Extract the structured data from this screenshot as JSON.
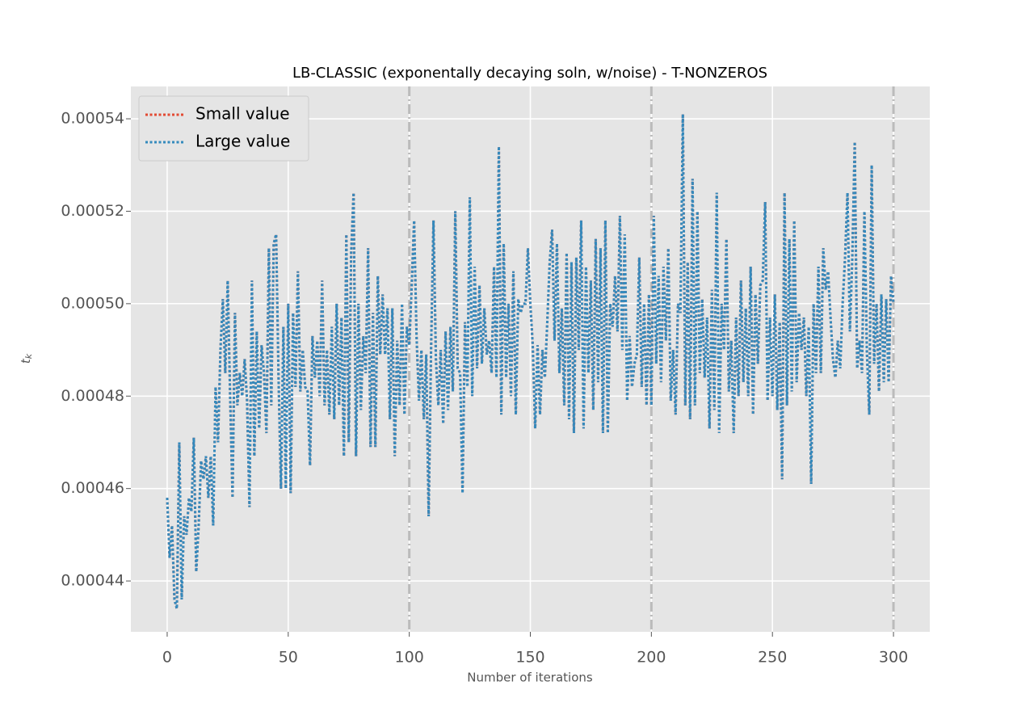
{
  "chart_data": {
    "type": "line",
    "title": "LB-CLASSIC (exponentally decaying soln, w/noise) - T-NONZEROS",
    "xlabel": "Number of iterations",
    "ylabel": {
      "base": "t",
      "sub": "k"
    },
    "xlim": [
      -15,
      315
    ],
    "xticks": [
      0,
      50,
      100,
      150,
      200,
      250,
      300
    ],
    "ylim": [
      0.000429,
      0.000547
    ],
    "yticks": [
      0.00044,
      0.00046,
      0.00048,
      {
        "value": 0.0005,
        "label": "0.00050"
      },
      0.00052,
      0.00054
    ],
    "grid": true,
    "legend": "upper left",
    "vlines": [
      100,
      200,
      300
    ],
    "vline_color": "#bbbbbb",
    "x": [
      0,
      1,
      2,
      3,
      4,
      5,
      6,
      7,
      8,
      9,
      10,
      11,
      12,
      13,
      14,
      15,
      16,
      17,
      18,
      19,
      20,
      21,
      22,
      23,
      24,
      25,
      26,
      27,
      28,
      29,
      30,
      31,
      32,
      33,
      34,
      35,
      36,
      37,
      38,
      39,
      40,
      41,
      42,
      43,
      44,
      45,
      46,
      47,
      48,
      49,
      50,
      51,
      52,
      53,
      54,
      55,
      56,
      57,
      58,
      59,
      60,
      61,
      62,
      63,
      64,
      65,
      66,
      67,
      68,
      69,
      70,
      71,
      72,
      73,
      74,
      75,
      76,
      77,
      78,
      79,
      80,
      81,
      82,
      83,
      84,
      85,
      86,
      87,
      88,
      89,
      90,
      91,
      92,
      93,
      94,
      95,
      96,
      97,
      98,
      99,
      100,
      101,
      102,
      103,
      104,
      105,
      106,
      107,
      108,
      109,
      110,
      111,
      112,
      113,
      114,
      115,
      116,
      117,
      118,
      119,
      120,
      121,
      122,
      123,
      124,
      125,
      126,
      127,
      128,
      129,
      130,
      131,
      132,
      133,
      134,
      135,
      136,
      137,
      138,
      139,
      140,
      141,
      142,
      143,
      144,
      145,
      146,
      147,
      148,
      149,
      150,
      151,
      152,
      153,
      154,
      155,
      156,
      157,
      158,
      159,
      160,
      161,
      162,
      163,
      164,
      165,
      166,
      167,
      168,
      169,
      170,
      171,
      172,
      173,
      174,
      175,
      176,
      177,
      178,
      179,
      180,
      181,
      182,
      183,
      184,
      185,
      186,
      187,
      188,
      189,
      190,
      191,
      192,
      193,
      194,
      195,
      196,
      197,
      198,
      199,
      200,
      201,
      202,
      203,
      204,
      205,
      206,
      207,
      208,
      209,
      210,
      211,
      212,
      213,
      214,
      215,
      216,
      217,
      218,
      219,
      220,
      221,
      222,
      223,
      224,
      225,
      226,
      227,
      228,
      229,
      230,
      231,
      232,
      233,
      234,
      235,
      236,
      237,
      238,
      239,
      240,
      241,
      242,
      243,
      244,
      245,
      246,
      247,
      248,
      249,
      250,
      251,
      252,
      253,
      254,
      255,
      256,
      257,
      258,
      259,
      260,
      261,
      262,
      263,
      264,
      265,
      266,
      267,
      268,
      269,
      270,
      271,
      272,
      273,
      274,
      275,
      276,
      277,
      278,
      279,
      280,
      281,
      282,
      283,
      284,
      285,
      286,
      287,
      288,
      289,
      290,
      291,
      292,
      293,
      294,
      295,
      296,
      297,
      298,
      299,
      300
    ],
    "series": [
      {
        "name": "Small value",
        "color": "#E24A33",
        "values": [
          0.000458,
          0.000445,
          0.000452,
          0.000436,
          0.000434,
          0.00047,
          0.000436,
          0.000454,
          0.00045,
          0.000458,
          0.000455,
          0.000471,
          0.000442,
          0.000452,
          0.000466,
          0.000462,
          0.000467,
          0.000458,
          0.000467,
          0.000452,
          0.000482,
          0.00047,
          0.00049,
          0.000501,
          0.000485,
          0.000505,
          0.00048,
          0.000458,
          0.000498,
          0.000478,
          0.000485,
          0.00048,
          0.000488,
          0.000479,
          0.000456,
          0.000505,
          0.000467,
          0.000494,
          0.000473,
          0.000491,
          0.000485,
          0.000472,
          0.000512,
          0.000478,
          0.000513,
          0.000515,
          0.000484,
          0.00046,
          0.000495,
          0.00046,
          0.0005,
          0.000459,
          0.000498,
          0.000482,
          0.000507,
          0.000481,
          0.00049,
          0.000482,
          0.000481,
          0.000465,
          0.000493,
          0.000484,
          0.000492,
          0.00048,
          0.000505,
          0.000478,
          0.00049,
          0.000476,
          0.000495,
          0.000475,
          0.0005,
          0.000478,
          0.000497,
          0.000467,
          0.000515,
          0.00047,
          0.000511,
          0.000524,
          0.000467,
          0.0005,
          0.000477,
          0.000493,
          0.000485,
          0.000512,
          0.000469,
          0.000498,
          0.000469,
          0.000506,
          0.000489,
          0.000502,
          0.000489,
          0.000499,
          0.000475,
          0.000499,
          0.000467,
          0.000492,
          0.000478,
          0.0005,
          0.000476,
          0.000495,
          0.000491,
          0.000504,
          0.000518,
          0.000493,
          0.000479,
          0.00049,
          0.000475,
          0.000489,
          0.000454,
          0.00049,
          0.000518,
          0.000488,
          0.000478,
          0.00049,
          0.000474,
          0.000494,
          0.000477,
          0.000495,
          0.000481,
          0.00052,
          0.000486,
          0.000485,
          0.000459,
          0.000496,
          0.000482,
          0.000523,
          0.00048,
          0.000508,
          0.000486,
          0.000504,
          0.000487,
          0.000499,
          0.000489,
          0.000492,
          0.000485,
          0.000508,
          0.000484,
          0.000534,
          0.000476,
          0.000513,
          0.000484,
          0.0005,
          0.00048,
          0.000507,
          0.000476,
          0.000501,
          0.000498,
          0.0005,
          0.0005,
          0.000512,
          0.0005,
          0.000491,
          0.000473,
          0.000491,
          0.000476,
          0.00049,
          0.000484,
          0.000496,
          0.000509,
          0.000516,
          0.000492,
          0.000513,
          0.000485,
          0.000499,
          0.000478,
          0.000511,
          0.000475,
          0.000509,
          0.000472,
          0.00051,
          0.00049,
          0.000518,
          0.000473,
          0.000508,
          0.000485,
          0.000505,
          0.000477,
          0.000514,
          0.000483,
          0.000512,
          0.000472,
          0.000518,
          0.000472,
          0.0005,
          0.000495,
          0.000506,
          0.000494,
          0.000519,
          0.00049,
          0.000515,
          0.000479,
          0.000493,
          0.000482,
          0.000487,
          0.000489,
          0.00051,
          0.000482,
          0.0005,
          0.000478,
          0.000502,
          0.000478,
          0.000519,
          0.000487,
          0.000506,
          0.000483,
          0.000508,
          0.000492,
          0.000512,
          0.000479,
          0.00049,
          0.000476,
          0.0005,
          0.000498,
          0.000541,
          0.000478,
          0.000509,
          0.000475,
          0.000527,
          0.000478,
          0.00052,
          0.000485,
          0.000501,
          0.000484,
          0.000497,
          0.000473,
          0.000503,
          0.000477,
          0.000524,
          0.000472,
          0.0005,
          0.00049,
          0.000514,
          0.000481,
          0.000492,
          0.000472,
          0.000497,
          0.00048,
          0.000505,
          0.000483,
          0.000499,
          0.00048,
          0.000508,
          0.000476,
          0.000502,
          0.000487,
          0.000504,
          0.000505,
          0.000522,
          0.000479,
          0.000497,
          0.00048,
          0.000502,
          0.000477,
          0.000496,
          0.000462,
          0.000524,
          0.000478,
          0.000514,
          0.000481,
          0.000518,
          0.000483,
          0.000498,
          0.00049,
          0.000497,
          0.00048,
          0.000495,
          0.000461,
          0.0005,
          0.000485,
          0.000508,
          0.000485,
          0.000512,
          0.000503,
          0.000507,
          0.000497,
          0.000488,
          0.000484,
          0.000492,
          0.000486,
          0.0005,
          0.00051,
          0.000524,
          0.000494,
          0.00051,
          0.000535,
          0.000486,
          0.000492,
          0.000485,
          0.00052,
          0.00049,
          0.000476,
          0.00053,
          0.000487,
          0.0005,
          0.000481,
          0.000502,
          0.000483,
          0.000501,
          0.000483,
          0.000506,
          0.0005
        ]
      },
      {
        "name": "Large value",
        "color": "#348ABD",
        "values": [
          0.000458,
          0.000445,
          0.000452,
          0.000436,
          0.000434,
          0.00047,
          0.000436,
          0.000454,
          0.00045,
          0.000458,
          0.000455,
          0.000471,
          0.000442,
          0.000452,
          0.000466,
          0.000462,
          0.000467,
          0.000458,
          0.000467,
          0.000452,
          0.000482,
          0.00047,
          0.00049,
          0.000501,
          0.000485,
          0.000505,
          0.00048,
          0.000458,
          0.000498,
          0.000478,
          0.000485,
          0.00048,
          0.000488,
          0.000479,
          0.000456,
          0.000505,
          0.000467,
          0.000494,
          0.000473,
          0.000491,
          0.000485,
          0.000472,
          0.000512,
          0.000478,
          0.000513,
          0.000515,
          0.000484,
          0.00046,
          0.000495,
          0.00046,
          0.0005,
          0.000459,
          0.000498,
          0.000482,
          0.000507,
          0.000481,
          0.00049,
          0.000482,
          0.000481,
          0.000465,
          0.000493,
          0.000484,
          0.000492,
          0.00048,
          0.000505,
          0.000478,
          0.00049,
          0.000476,
          0.000495,
          0.000475,
          0.0005,
          0.000478,
          0.000497,
          0.000467,
          0.000515,
          0.00047,
          0.000511,
          0.000524,
          0.000467,
          0.0005,
          0.000477,
          0.000493,
          0.000485,
          0.000512,
          0.000469,
          0.000498,
          0.000469,
          0.000506,
          0.000489,
          0.000502,
          0.000489,
          0.000499,
          0.000475,
          0.000499,
          0.000467,
          0.000492,
          0.000478,
          0.0005,
          0.000476,
          0.000495,
          0.000491,
          0.000504,
          0.000518,
          0.000493,
          0.000479,
          0.00049,
          0.000475,
          0.000489,
          0.000454,
          0.00049,
          0.000518,
          0.000488,
          0.000478,
          0.00049,
          0.000474,
          0.000494,
          0.000477,
          0.000495,
          0.000481,
          0.00052,
          0.000486,
          0.000485,
          0.000459,
          0.000496,
          0.000482,
          0.000523,
          0.00048,
          0.000508,
          0.000486,
          0.000504,
          0.000487,
          0.000499,
          0.000489,
          0.000492,
          0.000485,
          0.000508,
          0.000484,
          0.000534,
          0.000476,
          0.000513,
          0.000484,
          0.0005,
          0.00048,
          0.000507,
          0.000476,
          0.000501,
          0.000498,
          0.0005,
          0.0005,
          0.000512,
          0.0005,
          0.000491,
          0.000473,
          0.000491,
          0.000476,
          0.00049,
          0.000484,
          0.000496,
          0.000509,
          0.000516,
          0.000492,
          0.000513,
          0.000485,
          0.000499,
          0.000478,
          0.000511,
          0.000475,
          0.000509,
          0.000472,
          0.00051,
          0.00049,
          0.000518,
          0.000473,
          0.000508,
          0.000485,
          0.000505,
          0.000477,
          0.000514,
          0.000483,
          0.000512,
          0.000472,
          0.000518,
          0.000472,
          0.0005,
          0.000495,
          0.000506,
          0.000494,
          0.000519,
          0.00049,
          0.000515,
          0.000479,
          0.000493,
          0.000482,
          0.000487,
          0.000489,
          0.00051,
          0.000482,
          0.0005,
          0.000478,
          0.000502,
          0.000478,
          0.000519,
          0.000487,
          0.000506,
          0.000483,
          0.000508,
          0.000492,
          0.000512,
          0.000479,
          0.00049,
          0.000476,
          0.0005,
          0.000498,
          0.000541,
          0.000478,
          0.000509,
          0.000475,
          0.000527,
          0.000478,
          0.00052,
          0.000485,
          0.000501,
          0.000484,
          0.000497,
          0.000473,
          0.000503,
          0.000477,
          0.000524,
          0.000472,
          0.0005,
          0.00049,
          0.000514,
          0.000481,
          0.000492,
          0.000472,
          0.000497,
          0.00048,
          0.000505,
          0.000483,
          0.000499,
          0.00048,
          0.000508,
          0.000476,
          0.000502,
          0.000487,
          0.000504,
          0.000505,
          0.000522,
          0.000479,
          0.000497,
          0.00048,
          0.000502,
          0.000477,
          0.000496,
          0.000462,
          0.000524,
          0.000478,
          0.000514,
          0.000481,
          0.000518,
          0.000483,
          0.000498,
          0.00049,
          0.000497,
          0.00048,
          0.000495,
          0.000461,
          0.0005,
          0.000485,
          0.000508,
          0.000485,
          0.000512,
          0.000503,
          0.000507,
          0.000497,
          0.000488,
          0.000484,
          0.000492,
          0.000486,
          0.0005,
          0.00051,
          0.000524,
          0.000494,
          0.00051,
          0.000535,
          0.000486,
          0.000492,
          0.000485,
          0.00052,
          0.00049,
          0.000476,
          0.00053,
          0.000487,
          0.0005,
          0.000481,
          0.000502,
          0.000483,
          0.000501,
          0.000483,
          0.000506,
          0.0005
        ]
      }
    ]
  }
}
